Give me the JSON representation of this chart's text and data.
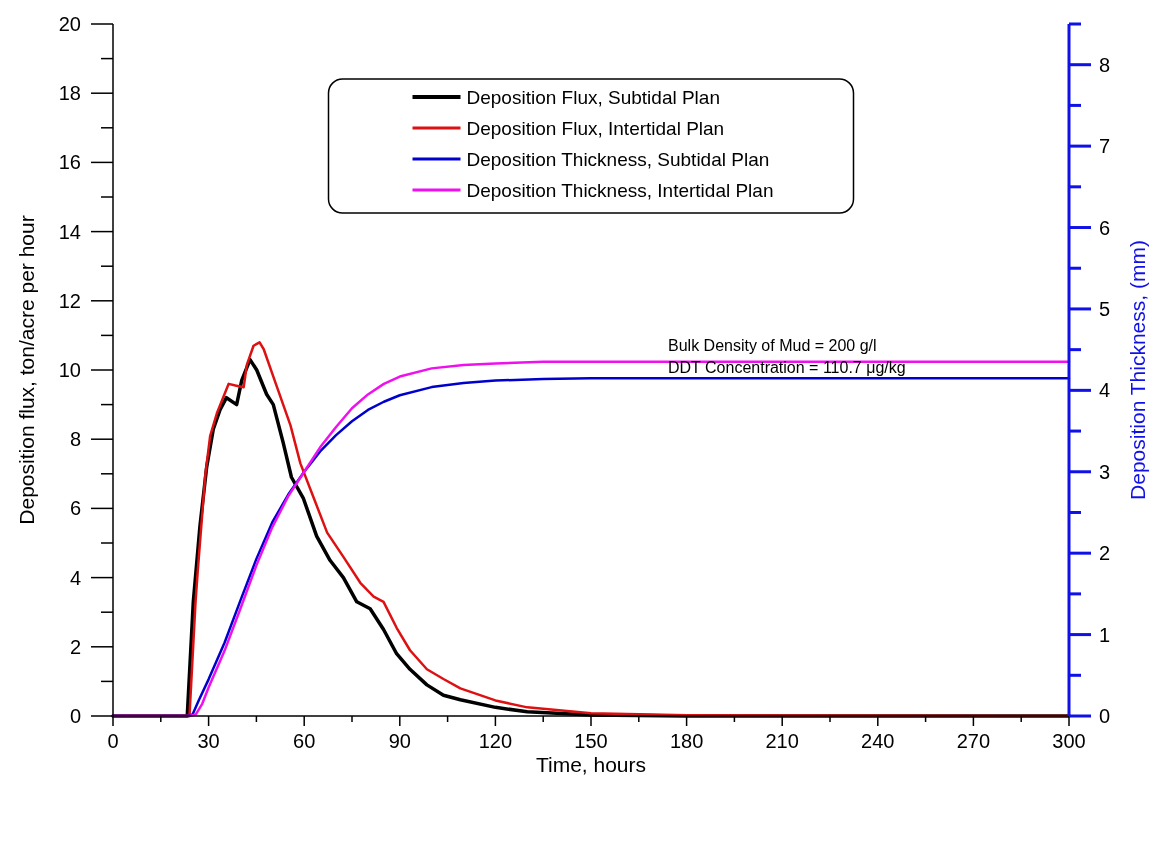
{
  "chart_data": {
    "type": "line",
    "xlabel": "Time, hours",
    "ylabel": "Deposition flux, ton/acre per hour",
    "y2label": "Deposition Thickness, (mm)",
    "xlim": [
      0,
      300
    ],
    "xticks": [
      0,
      {
        "value": 15,
        "label": null
      },
      30,
      {
        "value": 45,
        "label": null
      },
      60,
      {
        "value": 75,
        "label": null
      },
      90,
      {
        "value": 105,
        "label": null
      },
      120,
      {
        "value": 135,
        "label": null
      },
      150,
      {
        "value": 165,
        "label": null
      },
      180,
      {
        "value": 195,
        "label": null
      },
      210,
      {
        "value": 225,
        "label": null
      },
      240,
      {
        "value": 255,
        "label": null
      },
      270,
      {
        "value": 285,
        "label": null
      },
      300
    ],
    "ylim": [
      0,
      20
    ],
    "yticks": [
      0,
      {
        "value": 1,
        "label": null
      },
      2,
      {
        "value": 3,
        "label": null
      },
      4,
      {
        "value": 5,
        "label": null
      },
      6,
      {
        "value": 7,
        "label": null
      },
      8,
      {
        "value": 9,
        "label": null
      },
      10,
      {
        "value": 11,
        "label": null
      },
      12,
      {
        "value": 13,
        "label": null
      },
      14,
      {
        "value": 15,
        "label": null
      },
      16,
      {
        "value": 17,
        "label": null
      },
      18,
      {
        "value": 19,
        "label": null
      },
      20
    ],
    "y2lim": [
      0,
      8.5
    ],
    "y2ticks": [
      0,
      {
        "value": 0.5,
        "label": null
      },
      1,
      {
        "value": 1.5,
        "label": null
      },
      2,
      {
        "value": 2.5,
        "label": null
      },
      3,
      {
        "value": 3.5,
        "label": null
      },
      4,
      {
        "value": 4.5,
        "label": null
      },
      5,
      {
        "value": 5.5,
        "label": null
      },
      6,
      {
        "value": 6.5,
        "label": null
      },
      7,
      {
        "value": 7.5,
        "label": null
      },
      8,
      {
        "value": 8.5,
        "label": null
      }
    ],
    "grid": false,
    "legend": "top",
    "line_style": "solid",
    "annotations": [
      "Bulk Density of Mud = 200 g/l",
      "DDT Concentration = 110.7 μg/kg"
    ],
    "series": [
      {
        "name": "Deposition Flux, Subtidal Plan",
        "color": "#000000",
        "x": [
          0,
          23.3,
          25.2,
          27.3,
          29.4,
          31.5,
          33.6,
          35.6,
          38.8,
          40.4,
          43,
          45.1,
          48.2,
          50.3,
          53.4,
          56,
          59.7,
          63.9,
          68.1,
          72.3,
          76.5,
          80.7,
          84.9,
          89,
          93.2,
          98.5,
          103.7,
          109,
          120,
          130,
          150,
          180,
          300
        ],
        "values": [
          0,
          0,
          3.3,
          5.5,
          7.2,
          8.3,
          8.85,
          9.2,
          9.0,
          9.7,
          10.3,
          10.0,
          9.3,
          9.0,
          7.9,
          6.9,
          6.3,
          5.2,
          4.5,
          4.0,
          3.3,
          3.1,
          2.5,
          1.8,
          1.35,
          0.9,
          0.6,
          0.47,
          0.25,
          0.12,
          0.03,
          0,
          0
        ]
      },
      {
        "name": "Deposition Flux, Intertidal Plan",
        "color": "#dd1111",
        "x": [
          0,
          24,
          25.9,
          26.6,
          29,
          30.5,
          32.6,
          36.3,
          38.4,
          41,
          42,
          44.1,
          46,
          47.3,
          51.5,
          55.7,
          58.8,
          63,
          67.2,
          72.3,
          77.6,
          81.8,
          84.9,
          89,
          93.2,
          98.5,
          103.7,
          109,
          120,
          130,
          150,
          180,
          300
        ],
        "values": [
          0,
          0,
          3.3,
          4.2,
          7,
          8.1,
          8.75,
          9.6,
          9.55,
          9.5,
          10.15,
          10.7,
          10.8,
          10.6,
          9.5,
          8.4,
          7.3,
          6.3,
          5.3,
          4.6,
          3.85,
          3.45,
          3.3,
          2.55,
          1.9,
          1.35,
          1.07,
          0.8,
          0.45,
          0.25,
          0.08,
          0.02,
          0
        ]
      },
      {
        "name": "Deposition Thickness, Subtidal Plan",
        "color": "#0000cc",
        "axis": "y2",
        "x": [
          0,
          23.5,
          25,
          27,
          30,
          35,
          40,
          45,
          50,
          55,
          60,
          65,
          70,
          75,
          80,
          85,
          90,
          100,
          110,
          120,
          135,
          150,
          300
        ],
        "values": [
          0,
          0,
          0.02,
          0.2,
          0.45,
          0.9,
          1.42,
          1.93,
          2.38,
          2.72,
          3.0,
          3.25,
          3.45,
          3.62,
          3.76,
          3.86,
          3.94,
          4.04,
          4.09,
          4.12,
          4.14,
          4.15,
          4.15
        ]
      },
      {
        "name": "Deposition Thickness, Intertidal Plan",
        "color": "#ee11ee",
        "axis": "y2",
        "x": [
          0,
          24,
          26,
          28,
          30,
          35,
          40,
          45,
          50,
          55,
          60,
          65,
          70,
          75,
          80,
          85,
          90,
          100,
          110,
          120,
          135,
          150,
          300
        ],
        "values": [
          0,
          0,
          0.02,
          0.15,
          0.35,
          0.8,
          1.32,
          1.85,
          2.32,
          2.7,
          3.0,
          3.3,
          3.55,
          3.78,
          3.95,
          4.08,
          4.17,
          4.27,
          4.31,
          4.33,
          4.35,
          4.35,
          4.35
        ]
      }
    ]
  }
}
